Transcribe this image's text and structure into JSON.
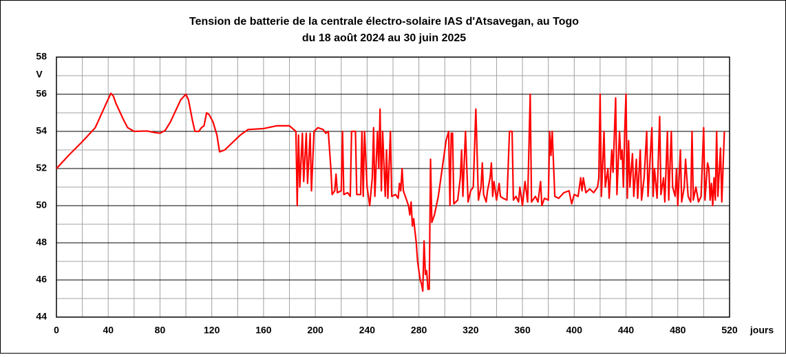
{
  "chart_data": {
    "type": "line",
    "title": "Tension de batterie de la centrale électro-solaire IAS d'Atsavegan, au Togo",
    "subtitle": "du 18 août 2024 au 30 juin 2025",
    "x_label": "jours",
    "y_label": "V",
    "color": "#ff0000",
    "xlim": [
      0,
      520
    ],
    "ylim": [
      44,
      58
    ],
    "xticks": [
      0,
      40,
      80,
      120,
      160,
      200,
      240,
      280,
      320,
      360,
      400,
      440,
      480,
      520
    ],
    "yticks": [
      44,
      46,
      48,
      50,
      52,
      54,
      56,
      58
    ],
    "minor_xticks": [
      20,
      60,
      100,
      140,
      180,
      220,
      260,
      300,
      340,
      380,
      420,
      460,
      500
    ],
    "minor_yticks": [
      45,
      47,
      49,
      51,
      53,
      55,
      57
    ],
    "grid": true,
    "x": [
      0,
      10,
      20,
      30,
      42,
      44,
      46,
      48,
      52,
      55,
      60,
      70,
      75,
      80,
      84,
      88,
      92,
      96,
      100,
      102,
      105,
      107,
      110,
      112,
      114,
      116,
      118,
      121,
      124,
      126,
      130,
      136,
      142,
      148,
      160,
      170,
      180,
      185,
      186,
      187,
      188,
      190,
      191,
      193,
      194,
      196,
      197,
      199,
      202,
      206,
      208,
      210,
      212,
      213,
      215,
      216,
      217,
      220,
      221,
      222,
      225,
      227,
      228,
      231,
      232,
      235,
      236,
      237,
      238,
      240,
      242,
      244,
      245,
      246,
      248,
      249,
      250,
      251,
      252,
      254,
      255,
      256,
      258,
      259,
      262,
      264,
      265,
      266,
      267,
      268,
      270,
      272,
      273,
      274,
      275,
      276,
      277,
      278,
      279,
      280,
      281,
      282,
      283,
      284,
      285,
      286,
      287,
      288,
      289,
      290,
      292,
      295,
      298,
      301,
      303,
      304,
      305,
      306,
      307,
      310,
      312,
      313,
      314,
      316,
      318,
      320,
      322,
      324,
      326,
      328,
      329,
      330,
      332,
      333,
      335,
      336,
      337,
      338,
      340,
      342,
      343,
      345,
      348,
      350,
      352,
      353,
      355,
      357,
      358,
      360,
      362,
      364,
      366,
      367,
      370,
      372,
      374,
      375,
      377,
      380,
      381,
      382,
      383,
      385,
      388,
      392,
      396,
      398,
      400,
      403,
      405,
      406,
      407,
      409,
      412,
      415,
      418,
      419,
      420,
      421,
      423,
      424,
      426,
      427,
      429,
      430,
      432,
      433,
      435,
      436,
      437,
      438,
      439,
      440,
      441,
      442,
      443,
      445,
      446,
      448,
      449,
      451,
      452,
      454,
      456,
      457,
      460,
      461,
      462,
      464,
      466,
      467,
      469,
      470,
      472,
      473,
      475,
      476,
      478,
      479,
      480,
      482,
      483,
      485,
      486,
      488,
      490,
      491,
      492,
      494,
      496,
      498,
      500,
      501,
      503,
      504,
      505,
      506,
      507,
      508,
      509,
      510,
      511,
      513,
      514,
      516
    ],
    "values": [
      52.0,
      52.75,
      53.45,
      54.2,
      56.05,
      55.9,
      55.5,
      55.2,
      54.6,
      54.2,
      54.0,
      54.02,
      53.95,
      53.9,
      54.05,
      54.5,
      55.1,
      55.7,
      56.0,
      55.7,
      54.6,
      54.0,
      54.0,
      54.2,
      54.3,
      55.0,
      54.9,
      54.5,
      53.8,
      52.9,
      53.0,
      53.4,
      53.8,
      54.1,
      54.15,
      54.3,
      54.3,
      54.0,
      50.0,
      53.8,
      51.0,
      53.9,
      51.3,
      53.9,
      51.2,
      53.9,
      50.8,
      54.0,
      54.2,
      54.1,
      53.9,
      54.0,
      52.0,
      50.6,
      50.8,
      51.7,
      50.7,
      50.8,
      54.0,
      50.6,
      50.7,
      50.5,
      54.0,
      54.0,
      50.6,
      50.6,
      54.0,
      50.5,
      54.0,
      51.0,
      50.0,
      51.5,
      54.2,
      50.5,
      54.0,
      52.0,
      55.2,
      50.8,
      54.0,
      50.5,
      53.0,
      50.4,
      54.0,
      50.5,
      50.6,
      50.4,
      51.2,
      50.8,
      52.0,
      50.8,
      50.4,
      50.0,
      49.5,
      50.2,
      48.9,
      49.3,
      48.6,
      48.0,
      47.0,
      46.5,
      46.0,
      45.8,
      45.4,
      48.1,
      46.3,
      46.5,
      45.5,
      45.5,
      52.5,
      49.1,
      49.5,
      50.5,
      52.0,
      53.5,
      54.0,
      50.0,
      53.9,
      53.9,
      50.1,
      50.3,
      51.5,
      53.0,
      50.5,
      54.0,
      50.2,
      50.8,
      51.0,
      55.2,
      50.3,
      51.0,
      52.3,
      50.6,
      50.2,
      50.8,
      51.5,
      52.3,
      50.5,
      51.3,
      50.3,
      51.2,
      50.5,
      50.4,
      50.3,
      54.0,
      54.0,
      50.3,
      50.5,
      50.2,
      51.0,
      50.0,
      51.3,
      50.2,
      56.0,
      50.2,
      50.5,
      50.2,
      51.3,
      50.0,
      50.4,
      50.3,
      54.0,
      52.7,
      54.0,
      50.5,
      50.4,
      50.7,
      50.8,
      50.1,
      50.6,
      50.5,
      51.5,
      50.8,
      51.5,
      50.7,
      50.9,
      50.7,
      51.0,
      51.5,
      56.0,
      50.5,
      54.0,
      51.0,
      52.0,
      50.4,
      53.0,
      51.8,
      55.8,
      50.6,
      54.0,
      52.5,
      53.0,
      51.0,
      54.0,
      56.0,
      50.4,
      53.5,
      51.0,
      52.8,
      50.5,
      52.5,
      50.4,
      53.0,
      50.3,
      51.5,
      54.0,
      50.5,
      54.2,
      50.5,
      52.0,
      50.4,
      54.8,
      50.6,
      51.5,
      50.2,
      54.0,
      50.3,
      54.0,
      51.0,
      50.5,
      52.0,
      50.0,
      53.0,
      50.2,
      51.0,
      52.5,
      50.5,
      50.2,
      54.0,
      50.3,
      51.0,
      50.2,
      50.5,
      54.2,
      50.3,
      52.3,
      52.0,
      50.3,
      51.2,
      50.0,
      51.5,
      50.3,
      54.0,
      50.5,
      53.1,
      50.2,
      54.0
    ]
  }
}
